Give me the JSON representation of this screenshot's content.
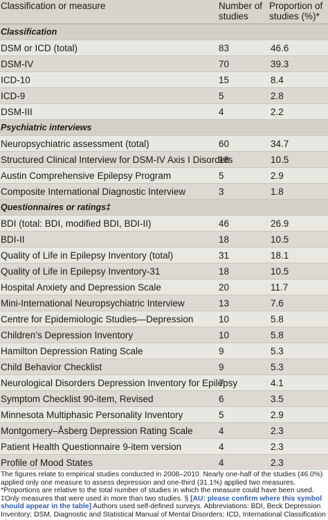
{
  "header": {
    "col1": "Classification or measure",
    "col2": "Number of studies",
    "col3": "Proportion of studies (%)*"
  },
  "rows": [
    {
      "type": "section",
      "label": "Classification"
    },
    {
      "type": "row",
      "label": "DSM or ICD (total)",
      "n": "83",
      "p": "46.6"
    },
    {
      "type": "row",
      "label": "DSM-IV",
      "n": "70",
      "p": "39.3"
    },
    {
      "type": "row",
      "label": "ICD-10",
      "n": "15",
      "p": "8.4"
    },
    {
      "type": "row",
      "label": "ICD-9",
      "n": "5",
      "p": "2.8"
    },
    {
      "type": "row",
      "label": "DSM-III",
      "n": "4",
      "p": "2.2"
    },
    {
      "type": "section",
      "label": "Psychiatric interviews"
    },
    {
      "type": "row",
      "label": "Neuropsychiatric assessment (total)",
      "n": "60",
      "p": "34.7"
    },
    {
      "type": "row",
      "label": "Structured Clinical Interview for DSM-IV Axis I Disorders",
      "n": "18",
      "p": "10.5"
    },
    {
      "type": "row",
      "label": "Austin Comprehensive Epilepsy Program",
      "n": "5",
      "p": "2.9"
    },
    {
      "type": "row",
      "label": "Composite International Diagnostic Interview",
      "n": "3",
      "p": "1.8"
    },
    {
      "type": "section",
      "label": "Questionnaires or ratings‡"
    },
    {
      "type": "row",
      "label": "BDI (total: BDI, modified BDI, BDI-II)",
      "n": "46",
      "p": "26.9"
    },
    {
      "type": "row",
      "label": "BDI-II",
      "n": "18",
      "p": "10.5"
    },
    {
      "type": "row",
      "label": "Quality of Life in Epilepsy Inventory (total)",
      "n": "31",
      "p": "18.1"
    },
    {
      "type": "row",
      "label": "Quality of Life in Epilepsy Inventory-31",
      "n": "18",
      "p": "10.5"
    },
    {
      "type": "row",
      "label": "Hospital Anxiety and Depression Scale",
      "n": "20",
      "p": "11.7"
    },
    {
      "type": "row",
      "label": "Mini-International Neuropsychiatric Interview",
      "n": "13",
      "p": "7.6"
    },
    {
      "type": "row",
      "label": "Centre for Epidemiologic Studies—Depression",
      "n": "10",
      "p": "5.8"
    },
    {
      "type": "row",
      "label": "Children’s Depression Inventory",
      "n": "10",
      "p": "5.8"
    },
    {
      "type": "row",
      "label": "Hamilton Depression Rating Scale",
      "n": "9",
      "p": "5.3"
    },
    {
      "type": "row",
      "label": "Child Behavior Checklist",
      "n": "9",
      "p": "5.3"
    },
    {
      "type": "row",
      "label": "Neurological Disorders Depression Inventory for Epilepsy",
      "n": "7",
      "p": "4.1"
    },
    {
      "type": "row",
      "label": "Symptom Checklist 90-item, Revised",
      "n": "6",
      "p": "3.5"
    },
    {
      "type": "row",
      "label": "Minnesota Multiphasic Personality Inventory",
      "n": "5",
      "p": "2.9"
    },
    {
      "type": "row",
      "label": "Montgomery–Åsberg Depression Rating Scale",
      "n": "4",
      "p": "2.3"
    },
    {
      "type": "row",
      "label": "Patient Health Questionnaire 9-item version",
      "n": "4",
      "p": "2.3"
    },
    {
      "type": "row",
      "label": "Profile of Mood States",
      "n": "4",
      "p": "2.3"
    }
  ],
  "footnote": {
    "before": "The figures relate to empirical studies conducted in 2008–2010. Nearly one-half of the studies (46.0%) applied only one measure to assess depression and one-third (31.1%) applied two measures. *Proportions are relative to the total number of studies in which the measure could have been used. ‡Only measures that were used in more than two studies. § ",
    "highlight": "[AU: please confirm where this symbol should appear in the table]",
    "after": " Authors used self-defined surveys. Abbreviations: BDI, Beck Depression Inventory; DSM, Diagnostic and Statistical Manual of Mental Disorders; ICD, International Classification of Diseases."
  }
}
